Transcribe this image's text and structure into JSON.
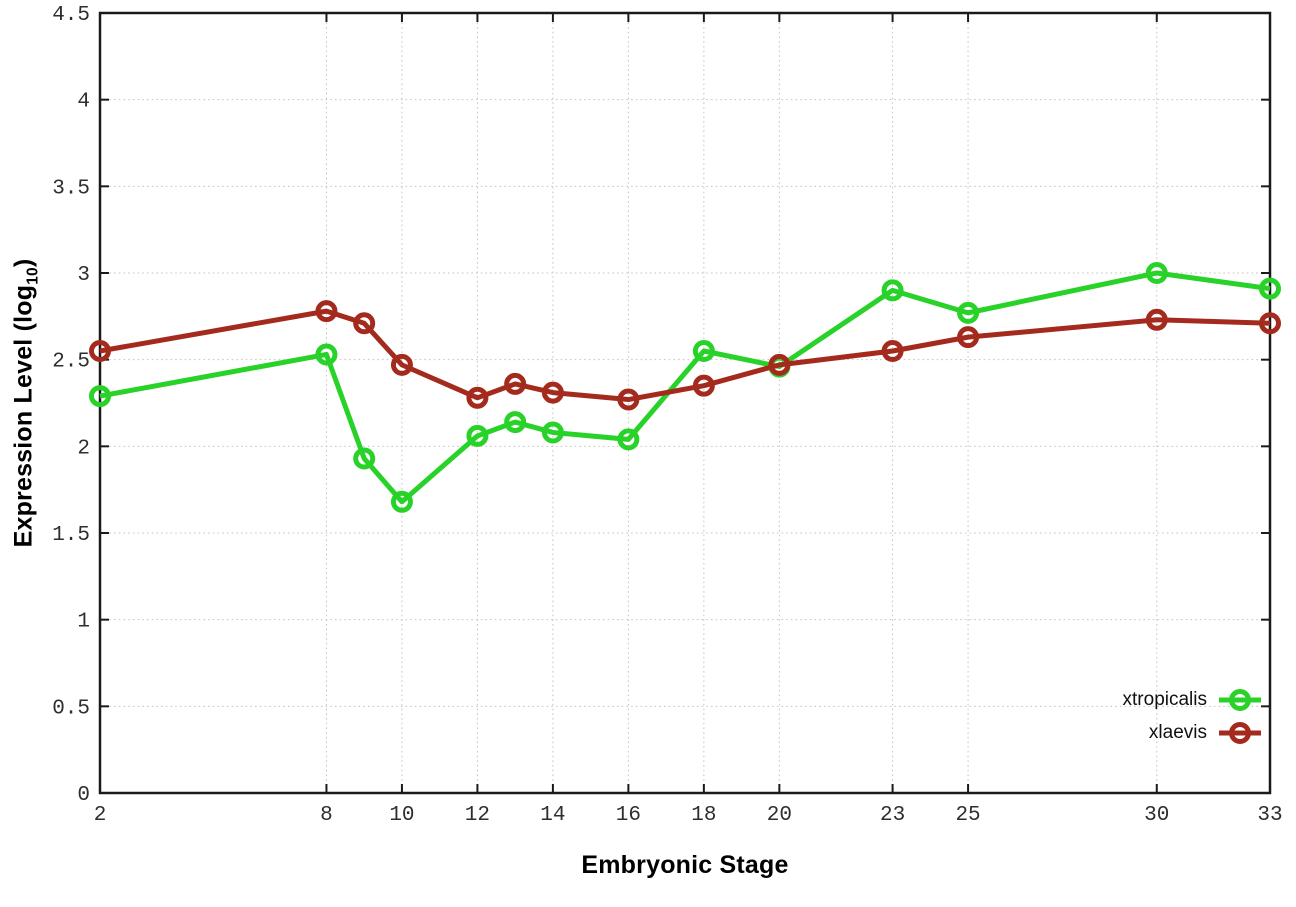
{
  "chart_data": {
    "type": "line",
    "title": "",
    "xlabel": "Embryonic Stage",
    "ylabel": "Expression Level (log10)",
    "ylabel_parts": {
      "prefix": "Expression Level (log",
      "sub": "10",
      "suffix": ")"
    },
    "xlim": [
      2,
      33
    ],
    "ylim": [
      0,
      4.5
    ],
    "grid": true,
    "legend_position": "bottom-right-inside",
    "x": [
      2,
      8,
      9,
      10,
      12,
      13,
      14,
      16,
      18,
      20,
      23,
      25,
      30,
      33
    ],
    "xtick_values": [
      2,
      8,
      10,
      12,
      14,
      16,
      18,
      20,
      23,
      25,
      30,
      33
    ],
    "xtick_labels": [
      "2",
      "8",
      "10",
      "12",
      "14",
      "16",
      "18",
      "20",
      "23",
      "25",
      "30",
      "33"
    ],
    "ytick_values": [
      0,
      0.5,
      1,
      1.5,
      2,
      2.5,
      3,
      3.5,
      4,
      4.5
    ],
    "ytick_labels": [
      "0",
      "0.5",
      "1",
      "1.5",
      "2",
      "2.5",
      "3",
      "3.5",
      "4",
      "4.5"
    ],
    "series": [
      {
        "name": "xtropicalis",
        "color": "#28d228",
        "values": [
          2.29,
          2.53,
          1.93,
          1.68,
          2.06,
          2.14,
          2.08,
          2.04,
          2.55,
          2.46,
          2.9,
          2.77,
          3.0,
          2.91
        ]
      },
      {
        "name": "xlaevis",
        "color": "#a52a1e",
        "values": [
          2.55,
          2.78,
          2.71,
          2.47,
          2.28,
          2.36,
          2.31,
          2.27,
          2.35,
          2.47,
          2.55,
          2.63,
          2.73,
          2.71
        ]
      }
    ]
  },
  "style_colors": {
    "border": "#1a1a1a",
    "tick_text": "#2e2e2e",
    "grid": "#c4c4c4",
    "background": "#ffffff"
  }
}
